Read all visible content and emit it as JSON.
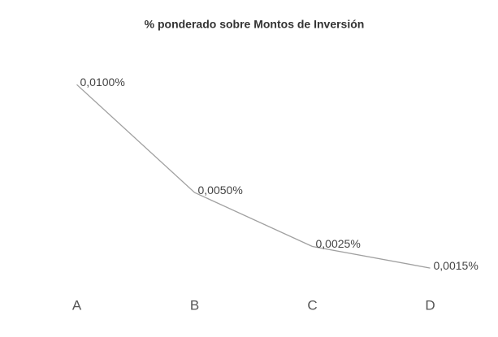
{
  "chart_data": {
    "type": "line",
    "title": "% ponderado sobre Montos de Inversión",
    "categories": [
      "A",
      "B",
      "C",
      "D"
    ],
    "values": [
      0.01,
      0.005,
      0.0025,
      0.0015
    ],
    "value_labels": [
      "0,0100%",
      "0,0050%",
      "0,0025%",
      "0,0015%"
    ],
    "color": "#a0a0a0",
    "ylim": [
      0,
      0.012
    ]
  }
}
